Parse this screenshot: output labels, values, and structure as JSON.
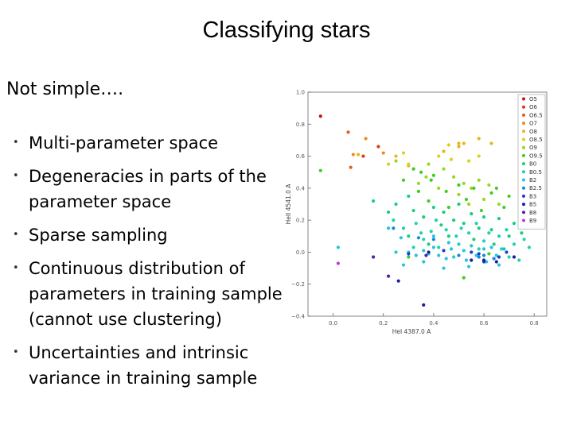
{
  "slide": {
    "title": "Classifying stars",
    "intro": "Not simple….",
    "bullets": [
      {
        "lines": [
          "Multi-parameter space"
        ]
      },
      {
        "lines": [
          "Degeneracies in parts of the",
          "parameter space"
        ]
      },
      {
        "lines": [
          "Sparse sampling"
        ]
      },
      {
        "lines": [
          "Continuous distribution of",
          "parameters in training sample",
          "(cannot use clustering)"
        ]
      },
      {
        "lines": [
          "Uncertainties and intrinsic",
          "variance in  training sample"
        ]
      }
    ]
  },
  "chart_data": {
    "type": "scatter",
    "title": "",
    "xlabel": "HeI 4387.0 A",
    "ylabel": "HeII 4541.0 A",
    "xlim": [
      -0.1,
      0.85
    ],
    "ylim": [
      -0.4,
      1.0
    ],
    "xticks": [
      {
        "v": 0.0,
        "label": "0.0"
      },
      {
        "v": 0.2,
        "label": "0.2"
      },
      {
        "v": 0.4,
        "label": "0.4"
      },
      {
        "v": 0.6,
        "label": "0.6"
      },
      {
        "v": 0.8,
        "label": "0.8"
      }
    ],
    "yticks": [
      {
        "v": -0.4,
        "label": "−0.4"
      },
      {
        "v": -0.2,
        "label": "−0.2"
      },
      {
        "v": 0.0,
        "label": "0.0"
      },
      {
        "v": 0.2,
        "label": "0.2"
      },
      {
        "v": 0.4,
        "label": "0.4"
      },
      {
        "v": 0.6,
        "label": "0.6"
      },
      {
        "v": 0.8,
        "label": "0.8"
      },
      {
        "v": 1.0,
        "label": "1.0"
      }
    ],
    "legend_position": "top-right",
    "grid": false,
    "series": [
      {
        "name": "O5",
        "color": "#d01010",
        "points": [
          [
            -0.05,
            0.85
          ]
        ]
      },
      {
        "name": "O6",
        "color": "#e03818",
        "points": [
          [
            0.12,
            0.6
          ],
          [
            0.18,
            0.66
          ]
        ]
      },
      {
        "name": "O6.5",
        "color": "#e85a1a",
        "points": [
          [
            0.06,
            0.75
          ],
          [
            0.07,
            0.53
          ]
        ]
      },
      {
        "name": "O7",
        "color": "#ec8a1c",
        "points": [
          [
            0.08,
            0.61
          ],
          [
            0.13,
            0.71
          ],
          [
            0.2,
            0.62
          ]
        ]
      },
      {
        "name": "O8",
        "color": "#e8b41c",
        "points": [
          [
            0.1,
            0.61
          ],
          [
            0.25,
            0.6
          ],
          [
            0.3,
            0.54
          ],
          [
            0.44,
            0.63
          ],
          [
            0.5,
            0.68
          ],
          [
            0.5,
            0.66
          ],
          [
            0.52,
            0.68
          ],
          [
            0.58,
            0.71
          ],
          [
            0.63,
            0.68
          ]
        ]
      },
      {
        "name": "O8.5",
        "color": "#d8d21e",
        "points": [
          [
            0.22,
            0.55
          ],
          [
            0.28,
            0.62
          ],
          [
            0.3,
            0.55
          ],
          [
            0.42,
            0.6
          ],
          [
            0.46,
            0.67
          ],
          [
            0.47,
            0.58
          ],
          [
            0.54,
            0.57
          ],
          [
            0.58,
            0.6
          ]
        ]
      },
      {
        "name": "O9",
        "color": "#9ad81e",
        "points": [
          [
            0.25,
            0.57
          ],
          [
            0.32,
            0.52
          ],
          [
            0.34,
            0.43
          ],
          [
            0.37,
            0.47
          ],
          [
            0.38,
            0.55
          ],
          [
            0.42,
            0.4
          ],
          [
            0.44,
            0.52
          ],
          [
            0.48,
            0.47
          ],
          [
            0.5,
            0.36
          ],
          [
            0.52,
            0.43
          ],
          [
            0.54,
            0.3
          ],
          [
            0.55,
            0.4
          ],
          [
            0.58,
            0.45
          ],
          [
            0.6,
            0.33
          ],
          [
            0.62,
            0.42
          ],
          [
            0.66,
            0.3
          ]
        ]
      },
      {
        "name": "O9.5",
        "color": "#40cc24",
        "points": [
          [
            -0.05,
            0.51
          ],
          [
            0.28,
            0.45
          ],
          [
            0.32,
            0.52
          ],
          [
            0.34,
            0.38
          ],
          [
            0.35,
            0.5
          ],
          [
            0.38,
            0.32
          ],
          [
            0.39,
            0.45
          ],
          [
            0.4,
            0.48
          ],
          [
            0.45,
            0.38
          ],
          [
            0.46,
            0.28
          ],
          [
            0.5,
            0.42
          ],
          [
            0.53,
            0.33
          ],
          [
            0.56,
            0.4
          ],
          [
            0.59,
            0.26
          ],
          [
            0.63,
            0.37
          ],
          [
            0.65,
            0.4
          ],
          [
            0.68,
            0.28
          ],
          [
            0.7,
            0.35
          ],
          [
            0.52,
            -0.16
          ],
          [
            0.62,
            -0.01
          ],
          [
            0.3,
            -0.03
          ]
        ]
      },
      {
        "name": "B0",
        "color": "#1ccc7c",
        "points": [
          [
            0.16,
            0.32
          ],
          [
            0.22,
            0.25
          ],
          [
            0.25,
            0.3
          ],
          [
            0.3,
            0.35
          ],
          [
            0.32,
            0.26
          ],
          [
            0.36,
            0.22
          ],
          [
            0.4,
            0.28
          ],
          [
            0.43,
            0.17
          ],
          [
            0.44,
            0.25
          ],
          [
            0.48,
            0.2
          ],
          [
            0.5,
            0.3
          ],
          [
            0.52,
            0.18
          ],
          [
            0.55,
            0.24
          ],
          [
            0.58,
            0.15
          ],
          [
            0.6,
            0.22
          ],
          [
            0.63,
            0.14
          ],
          [
            0.66,
            0.21
          ],
          [
            0.7,
            0.1
          ],
          [
            0.72,
            0.18
          ],
          [
            0.75,
            0.12
          ],
          [
            0.3,
            0.1
          ],
          [
            0.38,
            0.05
          ],
          [
            0.46,
            0.1
          ],
          [
            0.56,
            0.08
          ],
          [
            0.64,
            0.05
          ],
          [
            0.68,
            0.02
          ]
        ]
      },
      {
        "name": "B0.5",
        "color": "#1ed2b0",
        "points": [
          [
            0.24,
            0.2
          ],
          [
            0.28,
            0.15
          ],
          [
            0.33,
            0.18
          ],
          [
            0.35,
            0.12
          ],
          [
            0.39,
            0.13
          ],
          [
            0.41,
            0.2
          ],
          [
            0.45,
            0.14
          ],
          [
            0.49,
            0.1
          ],
          [
            0.51,
            0.15
          ],
          [
            0.54,
            0.12
          ],
          [
            0.57,
            0.18
          ],
          [
            0.6,
            0.07
          ],
          [
            0.62,
            0.12
          ],
          [
            0.66,
            0.1
          ],
          [
            0.69,
            0.14
          ],
          [
            0.72,
            0.05
          ],
          [
            0.76,
            0.08
          ],
          [
            0.78,
            0.03
          ],
          [
            0.32,
            0.03
          ],
          [
            0.36,
            0.08
          ],
          [
            0.42,
            0.03
          ],
          [
            0.5,
            0.05
          ],
          [
            0.58,
            0.02
          ],
          [
            0.7,
            -0.03
          ],
          [
            0.74,
            -0.05
          ]
        ]
      },
      {
        "name": "B2",
        "color": "#22c6dc",
        "points": [
          [
            0.02,
            0.03
          ],
          [
            0.22,
            0.15
          ],
          [
            0.25,
            0.0
          ],
          [
            0.27,
            0.09
          ],
          [
            0.3,
            0.0
          ],
          [
            0.33,
            -0.02
          ],
          [
            0.36,
            0.01
          ],
          [
            0.38,
            -0.01
          ],
          [
            0.4,
            0.03
          ],
          [
            0.42,
            -0.02
          ],
          [
            0.45,
            -0.04
          ],
          [
            0.47,
            0.02
          ],
          [
            0.48,
            -0.03
          ],
          [
            0.52,
            0.01
          ],
          [
            0.53,
            -0.05
          ],
          [
            0.55,
            0.04
          ],
          [
            0.57,
            -0.02
          ],
          [
            0.6,
            0.02
          ],
          [
            0.61,
            -0.06
          ],
          [
            0.63,
            0.03
          ],
          [
            0.65,
            -0.02
          ],
          [
            0.67,
            0.02
          ],
          [
            0.4,
            0.1
          ],
          [
            0.28,
            -0.08
          ],
          [
            0.46,
            0.06
          ],
          [
            0.54,
            -0.09
          ],
          [
            0.66,
            -0.08
          ],
          [
            0.36,
            -0.06
          ],
          [
            0.44,
            -0.1
          ]
        ]
      },
      {
        "name": "B2.5",
        "color": "#1a86d6",
        "points": [
          [
            0.24,
            0.15
          ],
          [
            0.34,
            0.09
          ],
          [
            0.4,
            0.08
          ],
          [
            0.5,
            -0.02
          ],
          [
            0.58,
            -0.03
          ],
          [
            0.6,
            -0.02
          ],
          [
            0.64,
            -0.04
          ]
        ]
      },
      {
        "name": "B3",
        "color": "#1a3ccc",
        "points": [
          [
            0.3,
            -0.01
          ],
          [
            0.44,
            0.01
          ],
          [
            0.55,
            0.0
          ],
          [
            0.58,
            -0.01
          ],
          [
            0.6,
            -0.06
          ],
          [
            0.66,
            -0.03
          ],
          [
            0.69,
            0.0
          ]
        ]
      },
      {
        "name": "B5",
        "color": "#1a1e9c",
        "points": [
          [
            0.26,
            -0.18
          ],
          [
            0.36,
            -0.33
          ],
          [
            0.38,
            0.0
          ],
          [
            0.55,
            -0.05
          ],
          [
            0.6,
            -0.05
          ],
          [
            0.65,
            -0.06
          ],
          [
            0.72,
            -0.03
          ]
        ]
      },
      {
        "name": "B8",
        "color": "#561ea8",
        "points": [
          [
            0.16,
            -0.03
          ],
          [
            0.22,
            -0.15
          ],
          [
            0.37,
            -0.02
          ]
        ]
      },
      {
        "name": "B9",
        "color": "#c23ad0",
        "points": [
          [
            0.02,
            -0.07
          ]
        ]
      }
    ]
  }
}
